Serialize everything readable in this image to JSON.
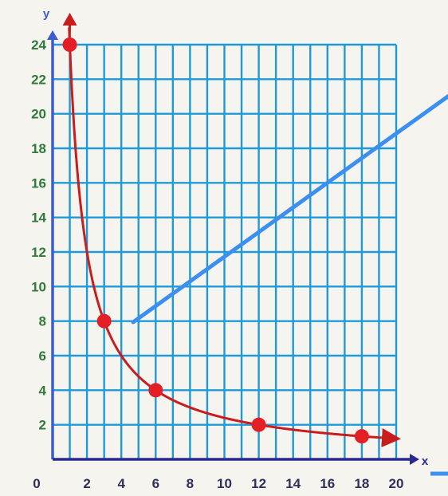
{
  "chart_data": {
    "type": "line",
    "title": "",
    "xlabel": "x",
    "ylabel": "y",
    "xlim": [
      0,
      20
    ],
    "ylim": [
      0,
      24
    ],
    "grid": true,
    "x_ticks": [
      "2",
      "4",
      "6",
      "8",
      "10",
      "12",
      "14",
      "16",
      "18",
      "20"
    ],
    "y_ticks": [
      "2",
      "4",
      "6",
      "8",
      "10",
      "12",
      "14",
      "16",
      "18",
      "20",
      "22",
      "24"
    ],
    "origin_label": "0",
    "series": [
      {
        "x": [
          1,
          3,
          6,
          12,
          18
        ],
        "y": [
          24,
          8,
          4,
          2,
          1.33
        ]
      }
    ],
    "curve_function": "y = 24 / x",
    "colors": {
      "grid": "#1e9bd7",
      "x_axis": "#2a2a8c",
      "y_axis": "#3b5bd6",
      "x_tick_labels": "#2f2f5c",
      "y_tick_labels": "#2f7a3a",
      "curve": "#c91d1d",
      "points": "#e31e24",
      "pointer_line": "#3a8ff0",
      "background": "#f6f4ef"
    }
  }
}
